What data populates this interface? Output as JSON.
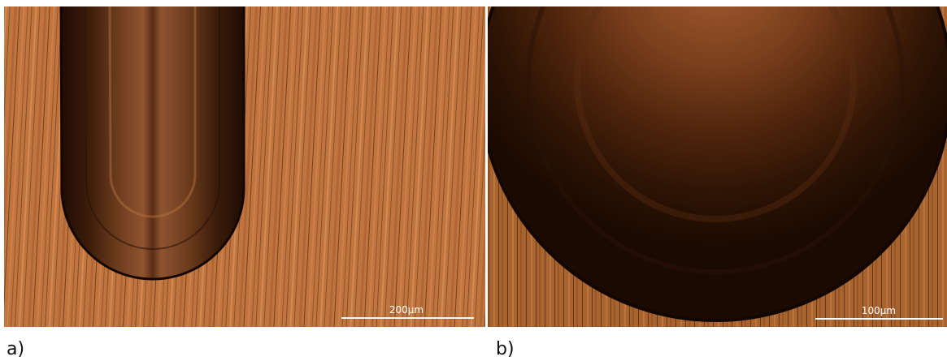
{
  "panels": [
    {
      "label": "a)",
      "scale_bar": "200µm"
    },
    {
      "label": "b)",
      "scale_bar": "100µm"
    }
  ]
}
